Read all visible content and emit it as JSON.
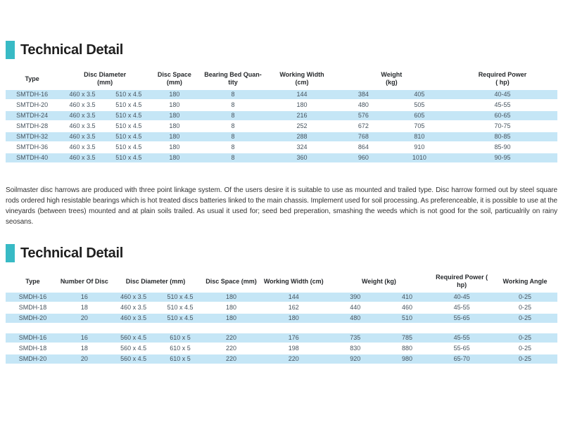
{
  "colors": {
    "accent": "#38bac5",
    "row_highlight": "#c5e6f6",
    "header_text": "#26292c",
    "cell_text": "#46535e"
  },
  "section1": {
    "title": "Technical Detail",
    "headers": {
      "type": "Type",
      "disc_diameter": "Disc Diameter\n(mm)",
      "disc_space": "Disc Space\n(mm)",
      "bearing_bed_quantity": "Bearing Bed Quan-\ntity",
      "working_width": "Working Width\n(cm)",
      "weight": "Weight\n(kg)",
      "required_power": "Required Power\n( hp)"
    },
    "rows": [
      [
        "SMTDH-16",
        "460 x 3.5",
        "510 x 4.5",
        "180",
        "8",
        "144",
        "384",
        "405",
        "40-45"
      ],
      [
        "SMTDH-20",
        "460 x 3.5",
        "510 x 4.5",
        "180",
        "8",
        "180",
        "480",
        "505",
        "45-55"
      ],
      [
        "SMTDH-24",
        "460 x 3.5",
        "510 x 4.5",
        "180",
        "8",
        "216",
        "576",
        "605",
        "60-65"
      ],
      [
        "SMTDH-28",
        "460 x 3.5",
        "510 x 4.5",
        "180",
        "8",
        "252",
        "672",
        "705",
        "70-75"
      ],
      [
        "SMTDH-32",
        "460 x 3.5",
        "510 x 4.5",
        "180",
        "8",
        "288",
        "768",
        "810",
        "80-85"
      ],
      [
        "SMTDH-36",
        "460 x 3.5",
        "510 x 4.5",
        "180",
        "8",
        "324",
        "864",
        "910",
        "85-90"
      ],
      [
        "SMTDH-40",
        "460 x 3.5",
        "510 x 4.5",
        "180",
        "8",
        "360",
        "960",
        "1010",
        "90-95"
      ]
    ]
  },
  "paragraph": "Soilmaster disc harrows are produced with three point linkage system. Of the users desire it is suitable to use as mounted and trailed type. Disc harrow formed out by steel square rods ordered high resistable bearings which is hot treated discs batteries linked to the main chassis. Implement used for soil processing. As preferenceable, it is possible to use at the vineyards (between trees) mounted and at plain soils trailed. As usual it used for; seed bed preperation, smashing the weeds which is not good for the soil, particualrily on rainy seosans.",
  "section2": {
    "title": "Technical Detail",
    "headers": {
      "type": "Type",
      "number_of_disc": "Number Of Disc",
      "disc_diameter": "Disc Diameter (mm)",
      "disc_space": "Disc Space (mm)",
      "working_width": "Working Width (cm)",
      "weight": "Weight (kg)",
      "required_power": "Required Power ( hp)",
      "working_angle": "Working Angle"
    },
    "group1": [
      [
        "SMDH-16",
        "16",
        "460 x 3.5",
        "510 x 4.5",
        "180",
        "144",
        "390",
        "410",
        "40-45",
        "0-25"
      ],
      [
        "SMDH-18",
        "18",
        "460 x 3.5",
        "510 x 4.5",
        "180",
        "162",
        "440",
        "460",
        "45-55",
        "0-25"
      ],
      [
        "SMDH-20",
        "20",
        "460 x 3.5",
        "510 x 4.5",
        "180",
        "180",
        "480",
        "510",
        "55-65",
        "0-25"
      ]
    ],
    "group2": [
      [
        "SMDH-16",
        "16",
        "560 x 4.5",
        "610 x 5",
        "220",
        "176",
        "735",
        "785",
        "45-55",
        "0-25"
      ],
      [
        "SMDH-18",
        "18",
        "560 x 4.5",
        "610 x 5",
        "220",
        "198",
        "830",
        "880",
        "55-65",
        "0-25"
      ],
      [
        "SMDH-20",
        "20",
        "560 x 4.5",
        "610 x 5",
        "220",
        "220",
        "920",
        "980",
        "65-70",
        "0-25"
      ]
    ]
  }
}
